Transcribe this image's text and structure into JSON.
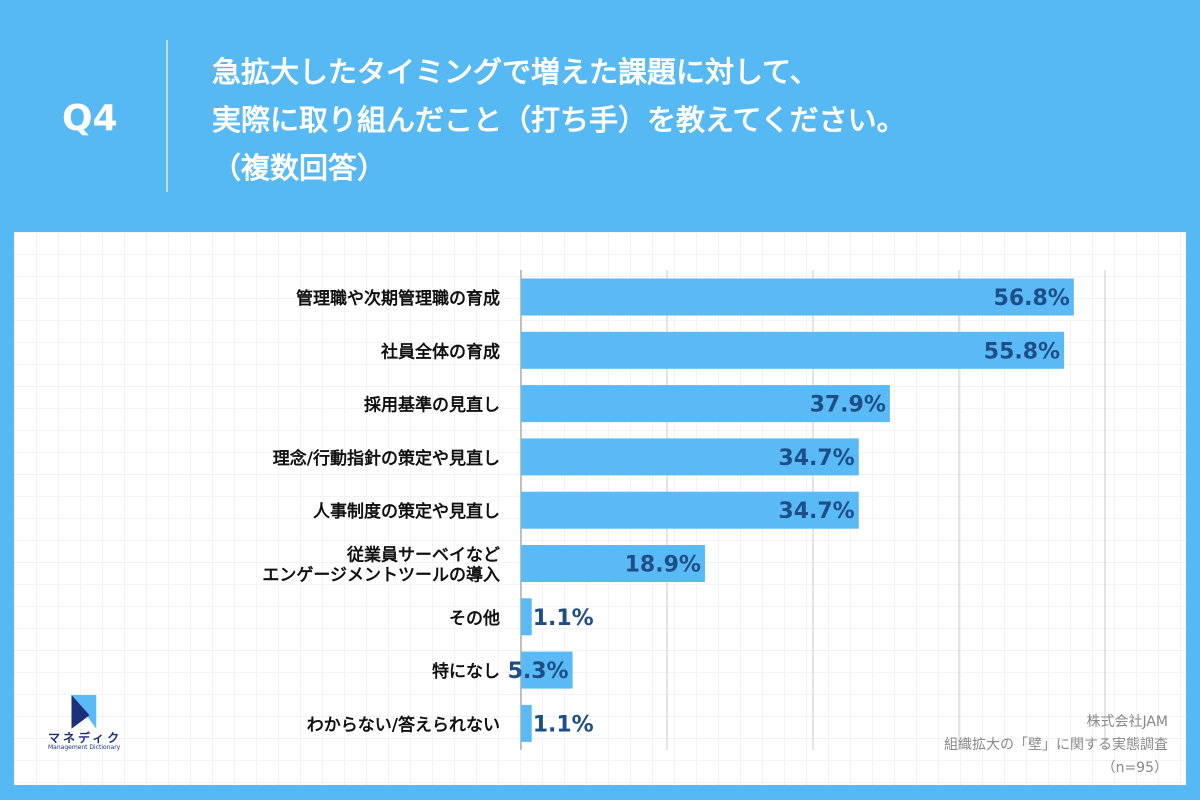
{
  "header": {
    "q_label": "Q4",
    "title_lines": [
      "急拡大したタイミングで増えた課題に対して、",
      "実際に取り組んだこと（打ち手）を教えてください。",
      "（複数回答）"
    ]
  },
  "chart_data": {
    "type": "bar",
    "orientation": "horizontal",
    "categories": [
      "管理職や次期管理職の育成",
      "社員全体の育成",
      "採用基準の見直し",
      "理念/行動指針の策定や見直し",
      "人事制度の策定や見直し",
      "従業員サーベイなど\nエンゲージメントツールの導入",
      "その他",
      "特になし",
      "わからない/答えられない"
    ],
    "values": [
      56.8,
      55.8,
      37.9,
      34.7,
      34.7,
      18.9,
      1.1,
      5.3,
      1.1
    ],
    "data_labels": [
      "56.8%",
      "55.8%",
      "37.9%",
      "34.7%",
      "34.7%",
      "18.9%",
      "1.1%",
      "5.3%",
      "1.1%"
    ],
    "xlim": [
      0,
      60
    ],
    "grid_x": [
      15,
      30,
      45,
      60
    ],
    "grid": true,
    "colors": {
      "bar": "#5abaf6",
      "label": "#1d4f86",
      "category": "#111111"
    }
  },
  "footer": {
    "company": "株式会社JAM",
    "survey": "組織拡大の「壁」に関する実態調査",
    "n": "（n=95）"
  },
  "logo": {
    "text": "マネディク",
    "sub": "Management Dictionary"
  }
}
